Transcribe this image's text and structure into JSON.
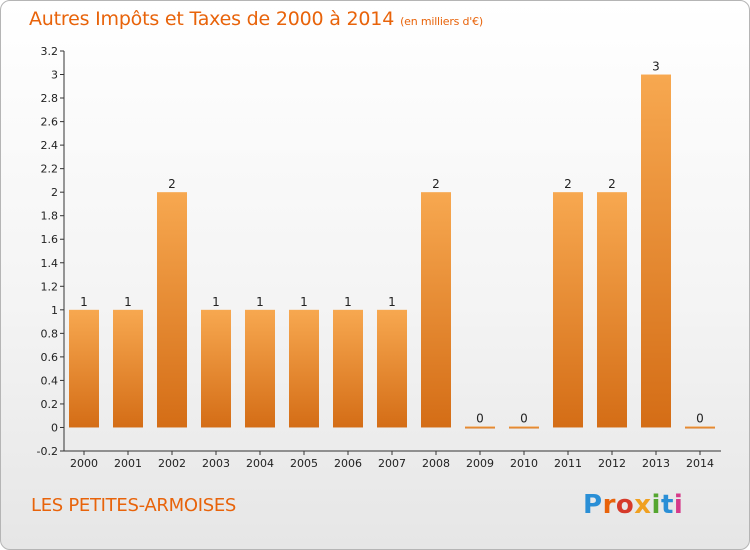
{
  "chart_title": "Autres Impôts et Taxes de 2000 à 2014",
  "chart_subtitle": "(en milliers d'€)",
  "place_name": "LES PETITES-ARMOISES",
  "logo": {
    "text": "Proxiti",
    "colors": [
      "#2a8fd6",
      "#e8630a",
      "#d63a2a",
      "#f0a020",
      "#55a630",
      "#2a8fd6",
      "#d63a8a"
    ]
  },
  "chart_data": {
    "type": "bar",
    "title": "Autres Impôts et Taxes de 2000 à 2014",
    "subtitle": "(en milliers d'€)",
    "xlabel": "",
    "ylabel": "",
    "categories": [
      "2000",
      "2001",
      "2002",
      "2003",
      "2004",
      "2005",
      "2006",
      "2007",
      "2008",
      "2009",
      "2010",
      "2011",
      "2012",
      "2013",
      "2014"
    ],
    "values": [
      1,
      1,
      2,
      1,
      1,
      1,
      1,
      1,
      2,
      0,
      0,
      2,
      2,
      3,
      0
    ],
    "data_labels": [
      "1",
      "1",
      "2",
      "1",
      "1",
      "1",
      "1",
      "1",
      "2",
      "0",
      "0",
      "2",
      "2",
      "3",
      "0"
    ],
    "ylim": [
      -0.2,
      3.2
    ],
    "yticks": [
      -0.2,
      0,
      0.2,
      0.4,
      0.6,
      0.8,
      1,
      1.2,
      1.4,
      1.6,
      1.8,
      2,
      2.2,
      2.4,
      2.6,
      2.8,
      3,
      3.2
    ],
    "ytick_labels": [
      "-0.2",
      "0",
      "0.2",
      "0.4",
      "0.6",
      "0.8",
      "1",
      "1.2",
      "1.4",
      "1.6",
      "1.8",
      "2",
      "2.2",
      "2.4",
      "2.6",
      "2.8",
      "3",
      "3.2"
    ],
    "grid": false,
    "bar_color_light": "#f7a850",
    "bar_color_dark": "#d46d16",
    "text_color": "#e8630a"
  }
}
